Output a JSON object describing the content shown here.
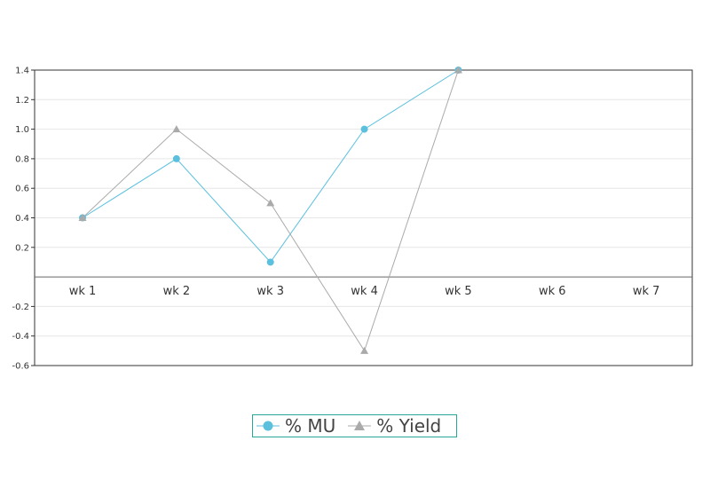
{
  "chart_data": {
    "type": "line",
    "categories": [
      "wk 1",
      "wk 2",
      "wk 3",
      "wk 4",
      "wk 5",
      "wk 6",
      "wk 7"
    ],
    "series": [
      {
        "name": "% MU",
        "values": [
          0.4,
          0.8,
          0.1,
          1.0,
          1.4,
          null,
          null
        ],
        "color": "#5bc0de",
        "marker": "circle"
      },
      {
        "name": "% Yield",
        "values": [
          0.4,
          1.0,
          0.5,
          -0.5,
          1.4,
          null,
          null
        ],
        "color": "#aaaaaa",
        "marker": "triangle"
      }
    ],
    "y_ticks": [
      {
        "value": 1.4,
        "label": "1.4"
      },
      {
        "value": 1.2,
        "label": "1.2"
      },
      {
        "value": 1.0,
        "label": "1.0"
      },
      {
        "value": 0.8,
        "label": "0.8"
      },
      {
        "value": 0.6,
        "label": "0.6"
      },
      {
        "value": 0.4,
        "label": "0.4"
      },
      {
        "value": 0.2,
        "label": "0.2"
      },
      {
        "value": -0.2,
        "label": "-0.2"
      },
      {
        "value": -0.4,
        "label": "-0.4"
      },
      {
        "value": -0.6,
        "label": "-0.6"
      }
    ],
    "ylim": [
      -0.6,
      1.4
    ],
    "grid": true,
    "legend_position": "bottom",
    "title": "",
    "xlabel": "",
    "ylabel": ""
  }
}
